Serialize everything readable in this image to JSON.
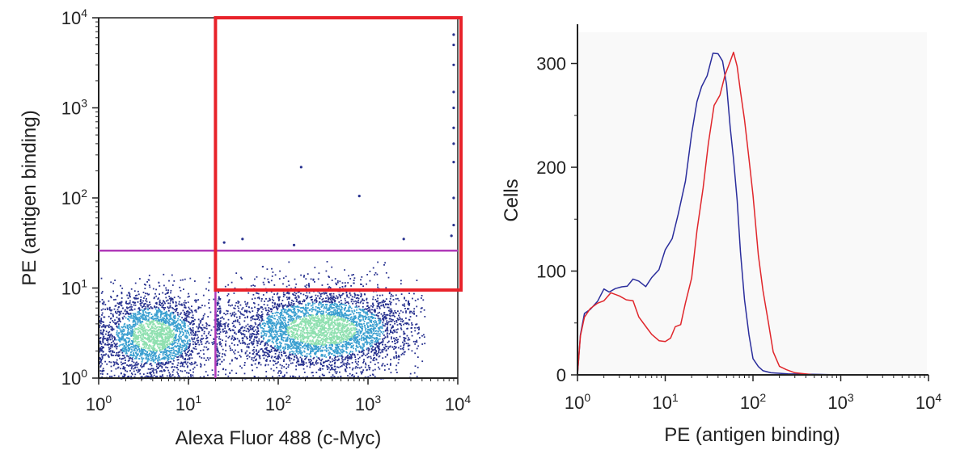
{
  "chart_data": [
    {
      "type": "scatter",
      "subtype": "flow-cytometry-dot-plot",
      "xlabel": "Alexa Fluor 488 (c-Myc)",
      "ylabel": "PE (antigen binding)",
      "x_scale": "log",
      "y_scale": "log",
      "xlim": [
        1,
        10000
      ],
      "ylim": [
        1,
        10000
      ],
      "x_ticks": [
        "10^0",
        "10^1",
        "10^2",
        "10^3",
        "10^4"
      ],
      "y_ticks": [
        "10^0",
        "10^1",
        "10^2",
        "10^3",
        "10^4"
      ],
      "colors": {
        "density_low": "#27318f",
        "density_mid": "#3a9fd0",
        "density_high": "#8fe0b0",
        "gate": "#e8222a",
        "quadrant": "#b03ab8"
      },
      "gates": [
        {
          "shape": "rectangle",
          "color": "#e8222a",
          "x_range": [
            20,
            10000
          ],
          "y_range": [
            9.5,
            10000
          ]
        }
      ],
      "quadrant_lines": {
        "color": "#b03ab8",
        "x": 20,
        "y": 26
      },
      "populations": [
        {
          "description": "negative population",
          "x_center": 4,
          "y_center": 3,
          "x_range": [
            1,
            20
          ],
          "y_range": [
            1,
            15
          ]
        },
        {
          "description": "positive population",
          "x_center": 300,
          "y_center": 3.5,
          "x_range": [
            20,
            3000
          ],
          "y_range": [
            1,
            20
          ]
        }
      ],
      "outlier_points": [
        {
          "x": 9000,
          "y": 6500
        },
        {
          "x": 9000,
          "y": 5000
        },
        {
          "x": 9000,
          "y": 3000
        },
        {
          "x": 9000,
          "y": 1500
        },
        {
          "x": 9000,
          "y": 1000
        },
        {
          "x": 9000,
          "y": 600
        },
        {
          "x": 9000,
          "y": 400
        },
        {
          "x": 9000,
          "y": 250
        },
        {
          "x": 9000,
          "y": 100
        },
        {
          "x": 9000,
          "y": 50
        },
        {
          "x": 8500,
          "y": 38
        },
        {
          "x": 180,
          "y": 220
        },
        {
          "x": 800,
          "y": 105
        },
        {
          "x": 25,
          "y": 32
        },
        {
          "x": 40,
          "y": 35
        },
        {
          "x": 150,
          "y": 30
        },
        {
          "x": 2500,
          "y": 35
        }
      ]
    },
    {
      "type": "line",
      "subtype": "histogram",
      "xlabel": "PE (antigen binding)",
      "ylabel": "Cells",
      "x_scale": "log",
      "xlim": [
        1,
        10000
      ],
      "ylim": [
        0,
        330
      ],
      "x_ticks": [
        "10^0",
        "10^1",
        "10^2",
        "10^3",
        "10^4"
      ],
      "y_ticks": [
        0,
        100,
        200,
        300
      ],
      "series": [
        {
          "color": "#2a2d9c",
          "points": [
            [
              1.0,
              0
            ],
            [
              1.08,
              40
            ],
            [
              1.2,
              58
            ],
            [
              1.4,
              68
            ],
            [
              1.7,
              74
            ],
            [
              2.0,
              78
            ],
            [
              2.3,
              82
            ],
            [
              2.7,
              85
            ],
            [
              3.2,
              80
            ],
            [
              3.7,
              88
            ],
            [
              4.3,
              95
            ],
            [
              5.0,
              90
            ],
            [
              6.0,
              88
            ],
            [
              7.0,
              92
            ],
            [
              8.5,
              105
            ],
            [
              10,
              118
            ],
            [
              12,
              132
            ],
            [
              14,
              155
            ],
            [
              17,
              190
            ],
            [
              20,
              230
            ],
            [
              23,
              260
            ],
            [
              26,
              275
            ],
            [
              30,
              290
            ],
            [
              35,
              305
            ],
            [
              40,
              312
            ],
            [
              45,
              300
            ],
            [
              50,
              275
            ],
            [
              55,
              240
            ],
            [
              60,
              210
            ],
            [
              66,
              165
            ],
            [
              72,
              120
            ],
            [
              80,
              75
            ],
            [
              90,
              35
            ],
            [
              100,
              18
            ],
            [
              115,
              8
            ],
            [
              130,
              4
            ],
            [
              160,
              2
            ],
            [
              250,
              1
            ],
            [
              1000,
              0
            ],
            [
              10000,
              0
            ]
          ]
        },
        {
          "color": "#e0262b",
          "points": [
            [
              1.0,
              0
            ],
            [
              1.08,
              35
            ],
            [
              1.2,
              55
            ],
            [
              1.4,
              65
            ],
            [
              1.7,
              72
            ],
            [
              2.0,
              76
            ],
            [
              2.4,
              80
            ],
            [
              3.0,
              78
            ],
            [
              3.6,
              72
            ],
            [
              4.3,
              68
            ],
            [
              5.0,
              58
            ],
            [
              6.0,
              48
            ],
            [
              7.0,
              42
            ],
            [
              8.5,
              37
            ],
            [
              10,
              33
            ],
            [
              11.5,
              36
            ],
            [
              13,
              42
            ],
            [
              15,
              52
            ],
            [
              17,
              68
            ],
            [
              20,
              95
            ],
            [
              23,
              135
            ],
            [
              27,
              180
            ],
            [
              31,
              225
            ],
            [
              36,
              258
            ],
            [
              42,
              270
            ],
            [
              48,
              285
            ],
            [
              55,
              300
            ],
            [
              60,
              310
            ],
            [
              66,
              295
            ],
            [
              72,
              275
            ],
            [
              80,
              248
            ],
            [
              90,
              210
            ],
            [
              100,
              170
            ],
            [
              115,
              120
            ],
            [
              130,
              80
            ],
            [
              150,
              48
            ],
            [
              170,
              25
            ],
            [
              200,
              12
            ],
            [
              240,
              5
            ],
            [
              300,
              2
            ],
            [
              500,
              0
            ],
            [
              10000,
              0
            ]
          ]
        }
      ]
    }
  ]
}
